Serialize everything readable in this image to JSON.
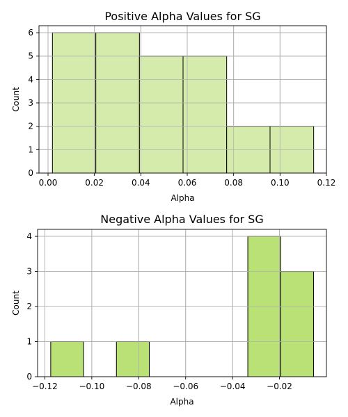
{
  "chart_data": [
    {
      "type": "bar",
      "title": "Positive Alpha Values for SG",
      "xlabel": "Alpha",
      "ylabel": "Count",
      "bar_color": "#d4ebab",
      "edge_color": "#000000",
      "bins": [
        {
          "x0": 0.0019,
          "x1": 0.0206,
          "count": 6
        },
        {
          "x0": 0.0206,
          "x1": 0.0394,
          "count": 6
        },
        {
          "x0": 0.0394,
          "x1": 0.0582,
          "count": 5
        },
        {
          "x0": 0.0582,
          "x1": 0.077,
          "count": 5
        },
        {
          "x0": 0.077,
          "x1": 0.0957,
          "count": 2
        },
        {
          "x0": 0.0957,
          "x1": 0.1145,
          "count": 2
        }
      ],
      "xlim": [
        -0.0039,
        0.12
      ],
      "ylim": [
        0,
        6.3
      ],
      "xticks": [
        0.0,
        0.02,
        0.04,
        0.06,
        0.08,
        0.1,
        0.12
      ],
      "xtick_labels": [
        "0.00",
        "0.02",
        "0.04",
        "0.06",
        "0.08",
        "0.10",
        "0.12"
      ],
      "yticks": [
        0,
        1,
        2,
        3,
        4,
        5,
        6
      ],
      "ytick_labels": [
        "0",
        "1",
        "2",
        "3",
        "4",
        "5",
        "6"
      ],
      "grid": true
    },
    {
      "type": "bar",
      "title": "Negative Alpha Values for SG",
      "xlabel": "Alpha",
      "ylabel": "Count",
      "bar_color": "#bae176",
      "edge_color": "#000000",
      "bins": [
        {
          "x0": -0.1175,
          "x1": -0.1035,
          "count": 1
        },
        {
          "x0": -0.1035,
          "x1": -0.0895,
          "count": 0
        },
        {
          "x0": -0.0895,
          "x1": -0.0755,
          "count": 1
        },
        {
          "x0": -0.0755,
          "x1": -0.0615,
          "count": 0
        },
        {
          "x0": -0.0615,
          "x1": -0.0475,
          "count": 0
        },
        {
          "x0": -0.0475,
          "x1": -0.0335,
          "count": 0
        },
        {
          "x0": -0.0335,
          "x1": -0.0195,
          "count": 4
        },
        {
          "x0": -0.0195,
          "x1": -0.0055,
          "count": 3
        }
      ],
      "xlim": [
        -0.1231,
        -0.0
      ],
      "ylim": [
        0,
        4.2
      ],
      "xticks": [
        -0.12,
        -0.1,
        -0.08,
        -0.06,
        -0.04,
        -0.02
      ],
      "xtick_labels": [
        "−0.12",
        "−0.10",
        "−0.08",
        "−0.06",
        "−0.04",
        "−0.02"
      ],
      "yticks": [
        0,
        1,
        2,
        3,
        4
      ],
      "ytick_labels": [
        "0",
        "1",
        "2",
        "3",
        "4"
      ],
      "grid": true
    }
  ]
}
